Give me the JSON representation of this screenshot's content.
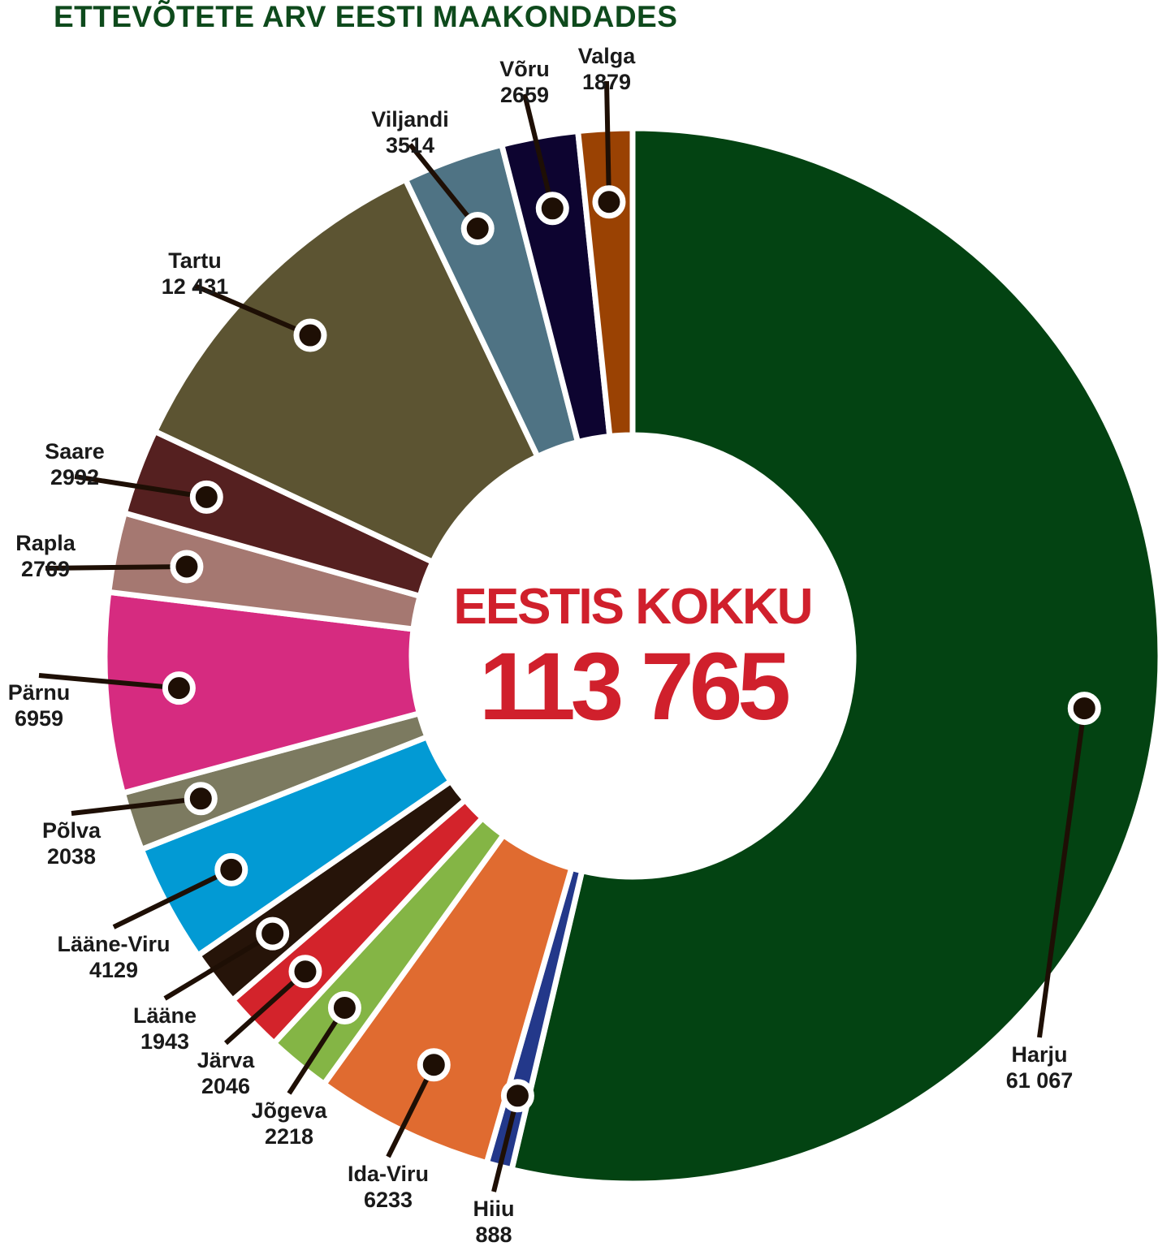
{
  "chart_data": {
    "type": "pie",
    "title": "ETTEVÕTETE ARV EESTI MAAKONDADES",
    "center_label": "EESTIS KOKKU",
    "total": "113 765",
    "slices": [
      {
        "name": "Harju",
        "value": 61067,
        "value_text": "61 067",
        "color": "#034312"
      },
      {
        "name": "Hiiu",
        "value": 888,
        "value_text": "888",
        "color": "#23388a"
      },
      {
        "name": "Ida-Viru",
        "value": 6233,
        "value_text": "6233",
        "color": "#e06b30"
      },
      {
        "name": "Jõgeva",
        "value": 2218,
        "value_text": "2218",
        "color": "#84b545"
      },
      {
        "name": "Järva",
        "value": 2046,
        "value_text": "2046",
        "color": "#d3232b"
      },
      {
        "name": "Lääne",
        "value": 1943,
        "value_text": "1943",
        "color": "#261409"
      },
      {
        "name": "Lääne-Viru",
        "value": 4129,
        "value_text": "4129",
        "color": "#029ad4"
      },
      {
        "name": "Põlva",
        "value": 2038,
        "value_text": "2038",
        "color": "#7c7a60"
      },
      {
        "name": "Pärnu",
        "value": 6959,
        "value_text": "6959",
        "color": "#d62b80"
      },
      {
        "name": "Rapla",
        "value": 2769,
        "value_text": "2769",
        "color": "#a57871"
      },
      {
        "name": "Saare",
        "value": 2992,
        "value_text": "2992",
        "color": "#552020"
      },
      {
        "name": "Tartu",
        "value": 12431,
        "value_text": "12 431",
        "color": "#5c5432"
      },
      {
        "name": "Viljandi",
        "value": 3514,
        "value_text": "3514",
        "color": "#4f7384"
      },
      {
        "name": "Võru",
        "value": 2659,
        "value_text": "2659",
        "color": "#0d0430"
      },
      {
        "name": "Valga",
        "value": 1879,
        "value_text": "1879",
        "color": "#9a4203"
      }
    ]
  }
}
